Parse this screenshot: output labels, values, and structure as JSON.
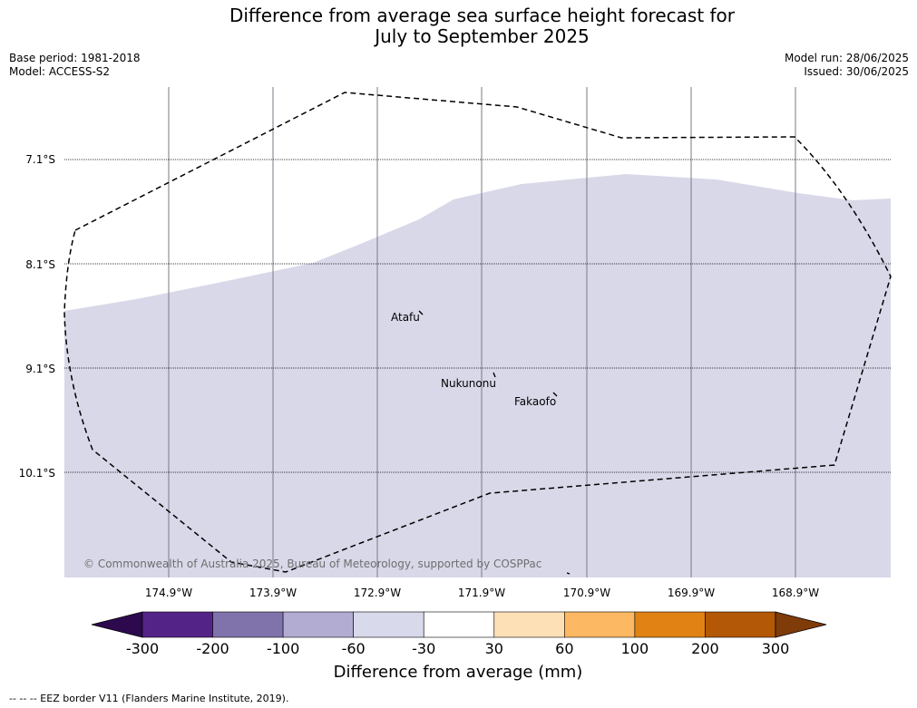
{
  "header": {
    "title_line1": "Difference from average sea surface height forecast for",
    "title_line2": "July to September 2025",
    "base_period": "Base period: 1981-2018",
    "model": "Model: ACCESS-S2",
    "model_run": "Model run: 28/06/2025",
    "issued": "Issued: 30/06/2025"
  },
  "map": {
    "lat_labels": [
      "7.1°S",
      "8.1°S",
      "9.1°S",
      "10.1°S"
    ],
    "lon_labels": [
      "174.9°W",
      "173.9°W",
      "172.9°W",
      "171.9°W",
      "170.9°W",
      "169.9°W",
      "168.9°W"
    ],
    "places": [
      "Atafu",
      "Nukunonu",
      "Fakaofo"
    ],
    "copyright": "© Commonwealth of Australia 2025, Bureau of Meteorology, supported by COSPPac",
    "fill_color": "#d8d8e9",
    "fill_category": "-60 to -30"
  },
  "colorbar": {
    "title": "Difference from average (mm)",
    "ticks": [
      "-300",
      "-200",
      "-100",
      "-60",
      "-30",
      "30",
      "60",
      "100",
      "200",
      "300"
    ],
    "colors": [
      "#2d0a4d",
      "#542387",
      "#8073ac",
      "#b2abd2",
      "#d8daeb",
      "#ffffff",
      "#fee0b6",
      "#fdb863",
      "#e08214",
      "#b35806",
      "#7f3b08"
    ]
  },
  "footer": {
    "legend_text": "--  --  -- EEZ border V11 (Flanders Marine Institute, 2019)."
  }
}
